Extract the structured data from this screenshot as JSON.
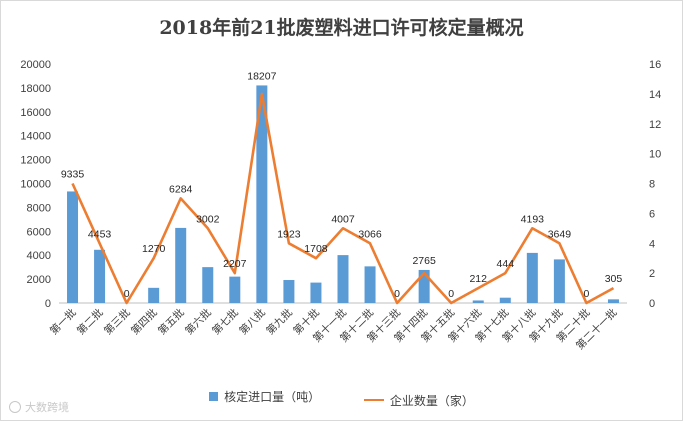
{
  "chart_data": {
    "type": "bar",
    "title": "2018年前21批废塑料进口许可核定量概况",
    "categories": [
      "第一批",
      "第二批",
      "第三批",
      "第四批",
      "第五批",
      "第六批",
      "第七批",
      "第八批",
      "第九批",
      "第十批",
      "第十一批",
      "第十二批",
      "第十三批",
      "第十四批",
      "第十五批",
      "第十六批",
      "第十七批",
      "第十八批",
      "第十九批",
      "第二十批",
      "第二十一批"
    ],
    "series": [
      {
        "name": "核定进口量（吨）",
        "type": "bar",
        "axis": "left",
        "color": "#5b9bd5",
        "values": [
          9335,
          4453,
          0,
          1270,
          6284,
          3002,
          2207,
          18207,
          1923,
          1708,
          4007,
          3066,
          0,
          2765,
          0,
          212,
          444,
          4193,
          3649,
          0,
          305
        ]
      },
      {
        "name": "企业数量（家）",
        "type": "line",
        "axis": "right",
        "color": "#ed7d31",
        "values": [
          8,
          4,
          0,
          3,
          7,
          5,
          2,
          14,
          4,
          3,
          5,
          4,
          0,
          2,
          0,
          1,
          2,
          5,
          4,
          0,
          1
        ]
      }
    ],
    "ylim": [
      0,
      20000
    ],
    "yticks": [
      0,
      2000,
      4000,
      6000,
      8000,
      10000,
      12000,
      14000,
      16000,
      18000,
      20000
    ],
    "y2lim": [
      0,
      16
    ],
    "y2ticks": [
      0,
      2,
      4,
      6,
      8,
      10,
      12,
      14,
      16
    ],
    "legend_position": "bottom",
    "grid": false
  },
  "watermark": {
    "text": "大数跨境",
    "icon": "weibo-circle-icon"
  }
}
